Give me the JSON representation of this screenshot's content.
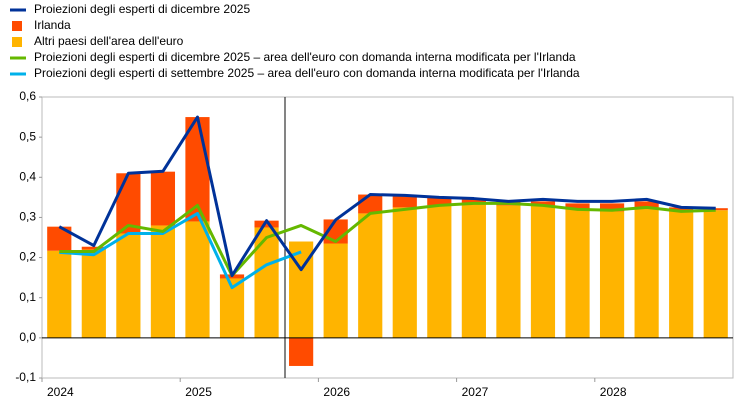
{
  "chart_data": {
    "type": "bar",
    "categories": [
      "2024",
      null,
      null,
      null,
      "2025",
      null,
      null,
      null,
      "2026",
      null,
      null,
      null,
      "2027",
      null,
      null,
      null,
      "2028",
      null,
      null,
      null
    ],
    "series": [
      {
        "name": "Proiezioni degli esperti di dicembre 2025",
        "type": "line",
        "color": "#003299",
        "values": [
          0.277,
          0.23,
          0.41,
          0.415,
          0.55,
          0.155,
          0.292,
          0.17,
          0.294,
          0.357,
          0.355,
          0.35,
          0.347,
          0.34,
          0.345,
          0.34,
          0.34,
          0.345,
          0.325,
          0.323
        ]
      },
      {
        "name": "Irlanda",
        "type": "bar",
        "color": "#ff4b00",
        "values": [
          0.06,
          0.007,
          0.15,
          0.134,
          0.26,
          0.01,
          0.017,
          -0.07,
          0.06,
          0.047,
          0.03,
          0.02,
          0.01,
          0.01,
          0.01,
          0.015,
          0.02,
          0.015,
          0.01,
          0.005
        ]
      },
      {
        "name": "Altri paesi dell'area dell'euro",
        "type": "bar",
        "color": "#ffb400",
        "values": [
          0.217,
          0.22,
          0.26,
          0.28,
          0.29,
          0.148,
          0.275,
          0.24,
          0.235,
          0.31,
          0.325,
          0.33,
          0.337,
          0.33,
          0.33,
          0.32,
          0.315,
          0.325,
          0.315,
          0.318
        ]
      },
      {
        "name": "Proiezioni degli esperti di dicembre 2025 – area dell'euro con domanda interna modificata per l'Irlanda",
        "type": "line",
        "color": "#65b800",
        "values": [
          0.215,
          0.215,
          0.28,
          0.265,
          0.33,
          0.155,
          0.25,
          0.28,
          0.24,
          0.31,
          0.32,
          0.33,
          0.335,
          0.335,
          0.33,
          0.32,
          0.318,
          0.325,
          0.315,
          0.318
        ]
      },
      {
        "name": "Proiezioni degli esperti di settembre 2025 – area dell'euro con domanda interna modificata per l'Irlanda",
        "type": "line",
        "color": "#00b1ea",
        "values": [
          0.213,
          0.207,
          0.26,
          0.26,
          0.31,
          0.125,
          0.182,
          0.214,
          null,
          null,
          null,
          null,
          null,
          null,
          null,
          null,
          null,
          null,
          null,
          null
        ]
      }
    ],
    "ylim": [
      -0.1,
      0.6
    ],
    "yticks": [
      {
        "value": 0.6,
        "label": "0,6"
      },
      {
        "value": 0.5,
        "label": "0,5"
      },
      {
        "value": 0.4,
        "label": "0,4"
      },
      {
        "value": 0.3,
        "label": "0,3"
      },
      {
        "value": 0.2,
        "label": "0,2"
      },
      {
        "value": 0.1,
        "label": "0,1"
      },
      {
        "value": 0,
        "label": "0,0"
      },
      {
        "value": -0.1,
        "label": "-0,1"
      }
    ],
    "grid": false,
    "legend": "top-left"
  }
}
